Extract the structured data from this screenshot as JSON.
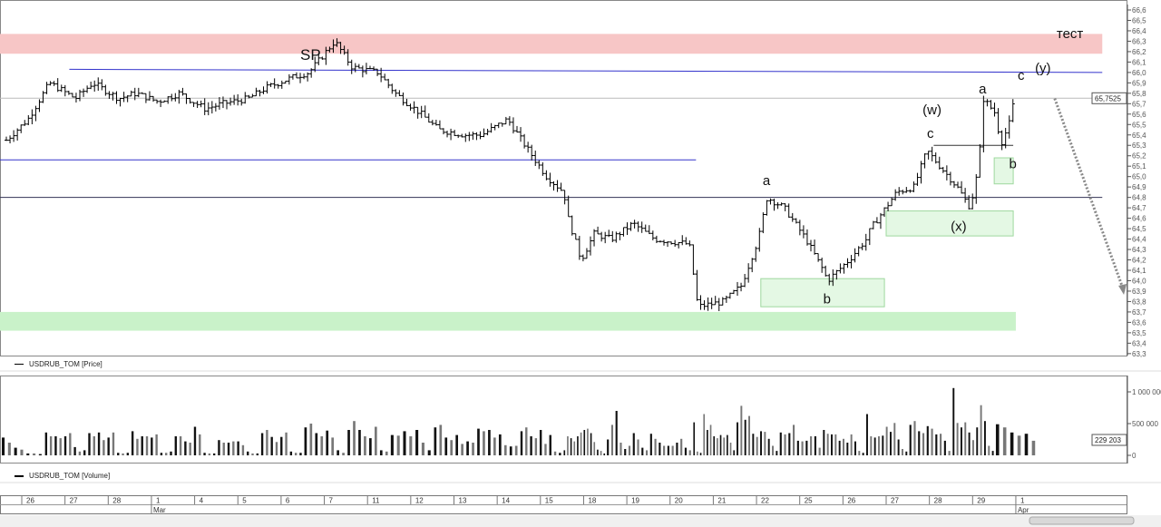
{
  "price_legend": "USDRUB_TOM [Price]",
  "volume_legend": "USDRUB_TOM [Volume]",
  "chart_data": [
    {
      "type": "ohlc",
      "title": "USDRUB_TOM [Price]",
      "ylim": [
        63.3,
        66.6
      ],
      "y_ticks": [
        "66,6",
        "66,5",
        "66,4",
        "66,3",
        "66,2",
        "66,1",
        "66,0",
        "65,9",
        "65,8",
        "65,7",
        "65,6",
        "65,5",
        "65,4",
        "65,3",
        "65,2",
        "65,1",
        "65,0",
        "64,9",
        "64,8",
        "64,7",
        "64,6",
        "64,5",
        "64,4",
        "64,3",
        "64,2",
        "64,1",
        "64,0",
        "63,9",
        "63,8",
        "63,7",
        "63,6",
        "63,5",
        "63,4",
        "63,3"
      ],
      "last_price_label": "65,7525",
      "last_price": 65.7525,
      "price_path": [
        [
          0,
          65.35
        ],
        [
          0.5,
          65.55
        ],
        [
          1,
          65.9
        ],
        [
          1.6,
          65.75
        ],
        [
          2,
          65.9
        ],
        [
          2.6,
          65.75
        ],
        [
          3,
          65.8
        ],
        [
          3.5,
          65.72
        ],
        [
          4,
          65.8
        ],
        [
          4.6,
          65.65
        ],
        [
          5,
          65.7
        ],
        [
          5.6,
          65.75
        ],
        [
          6,
          65.85
        ],
        [
          6.6,
          65.95
        ],
        [
          7,
          66.0
        ],
        [
          7.6,
          66.3
        ],
        [
          8,
          66.05
        ],
        [
          8.6,
          66.0
        ],
        [
          9,
          65.8
        ],
        [
          9.6,
          65.6
        ],
        [
          10,
          65.45
        ],
        [
          10.6,
          65.4
        ],
        [
          11,
          65.4
        ],
        [
          11.6,
          65.55
        ],
        [
          12,
          65.3
        ],
        [
          12.5,
          65.0
        ],
        [
          12.9,
          64.85
        ],
        [
          13,
          64.6
        ],
        [
          13.3,
          64.2
        ],
        [
          13.6,
          64.45
        ],
        [
          14,
          64.4
        ],
        [
          14.5,
          64.55
        ],
        [
          15,
          64.4
        ],
        [
          15.8,
          64.35
        ],
        [
          16,
          63.75
        ],
        [
          16.6,
          63.8
        ],
        [
          17,
          63.95
        ],
        [
          17.4,
          64.4
        ],
        [
          17.6,
          64.8
        ],
        [
          18,
          64.7
        ],
        [
          18.5,
          64.4
        ],
        [
          18.9,
          64.1
        ],
        [
          19,
          64.0
        ],
        [
          19.5,
          64.2
        ],
        [
          19.9,
          64.4
        ],
        [
          20,
          64.5
        ],
        [
          20.6,
          64.85
        ],
        [
          21,
          64.9
        ],
        [
          21.3,
          65.25
        ],
        [
          21.7,
          65.05
        ],
        [
          22,
          64.9
        ],
        [
          22.3,
          64.7
        ],
        [
          22.5,
          65.1
        ],
        [
          22.6,
          65.75
        ],
        [
          22.9,
          65.6
        ],
        [
          23,
          65.3
        ],
        [
          23.2,
          65.5
        ],
        [
          23.35,
          65.8
        ]
      ],
      "zones": [
        {
          "color": "#f7c6c6",
          "from_day": -1,
          "to_day": 25,
          "low": 66.18,
          "high": 66.37
        },
        {
          "color": "#c9f2c9",
          "from_day": -1,
          "to_day": 23,
          "low": 63.52,
          "high": 63.7
        },
        {
          "color": "#e4f8e4",
          "from_day": 17.1,
          "to_day": 19.96,
          "low": 63.75,
          "high": 64.02
        },
        {
          "color": "#e4f8e4",
          "from_day": 20.0,
          "to_day": 22.94,
          "low": 64.43,
          "high": 64.67
        },
        {
          "color": "#e4f8e4",
          "from_day": 22.5,
          "to_day": 22.94,
          "low": 64.93,
          "high": 65.18
        }
      ],
      "lines": [
        {
          "color": "#3333cc",
          "from_day": 1.1,
          "to_day": 25,
          "p1": 66.03,
          "p2": 66.0
        },
        {
          "color": "#3333cc",
          "from_day": -1,
          "to_day": 15.6,
          "p1": 65.16,
          "p2": 65.16
        },
        {
          "color": "#333355",
          "from_day": -1,
          "to_day": 25,
          "p1": 64.8,
          "p2": 64.8
        },
        {
          "color": "#bbbbbb",
          "from_day": -1,
          "to_day": 25,
          "p1": 65.7525,
          "p2": 65.7525
        },
        {
          "color": "#333333",
          "from_day": 21.1,
          "to_day": 22.94,
          "p1": 65.3,
          "p2": 65.3
        }
      ],
      "forecast_arrow": {
        "from": [
          23.9,
          65.75
        ],
        "to": [
          25.5,
          63.9
        ]
      },
      "annotations": [
        {
          "text": "SP",
          "day": 6.8,
          "price": 66.12,
          "size": 17
        },
        {
          "text": "тест",
          "day": 24.3,
          "price": 66.33,
          "size": 15
        },
        {
          "text": "(y)",
          "day": 23.8,
          "price": 66.0,
          "size": 15
        },
        {
          "text": "c",
          "day": 23.4,
          "price": 65.93,
          "size": 15
        },
        {
          "text": "a",
          "day": 22.5,
          "price": 65.8,
          "size": 15
        },
        {
          "text": "(w)",
          "day": 21.2,
          "price": 65.6,
          "size": 15
        },
        {
          "text": "c",
          "day": 21.3,
          "price": 65.37,
          "size": 15
        },
        {
          "text": "b",
          "day": 23.2,
          "price": 65.08,
          "size": 15
        },
        {
          "text": "a",
          "day": 17.5,
          "price": 64.92,
          "size": 15
        },
        {
          "text": "(x)",
          "day": 21.85,
          "price": 64.48,
          "size": 15
        },
        {
          "text": "b",
          "day": 18.9,
          "price": 63.78,
          "size": 15
        }
      ]
    },
    {
      "type": "bar",
      "title": "USDRUB_TOM [Volume]",
      "ylim": [
        -150000,
        1200000
      ],
      "y_ticks": [
        "1 000 000",
        "500 000",
        "0"
      ],
      "last_volume_label": "229 203",
      "daily_volumes_k": [
        [
          280,
          200,
          120,
          90,
          30,
          30,
          20
        ],
        [
          360,
          300,
          300,
          270,
          300,
          350,
          130,
          60,
          80
        ],
        [
          350,
          300,
          360,
          240,
          280,
          360,
          40,
          30,
          40
        ],
        [
          380,
          260,
          300,
          300,
          280,
          330,
          40,
          40,
          60
        ],
        [
          300,
          300,
          220,
          200,
          450,
          330,
          40,
          30,
          30
        ],
        [
          240,
          200,
          200,
          220,
          220,
          160,
          60,
          30,
          30
        ],
        [
          350,
          400,
          290,
          210,
          290,
          360,
          60,
          40,
          40
        ],
        [
          440,
          500,
          350,
          300,
          390,
          280,
          80,
          40
        ],
        [
          400,
          540,
          400,
          300,
          270,
          450,
          80,
          60
        ],
        [
          320,
          310,
          380,
          300,
          400,
          200,
          80
        ],
        [
          440,
          480,
          280,
          240,
          320,
          180,
          220,
          200
        ],
        [
          420,
          380,
          400,
          280,
          330,
          160,
          140,
          150
        ],
        [
          380,
          440,
          300,
          270,
          400,
          180,
          320,
          60,
          40
        ],
        [
          80,
          300,
          270,
          220,
          300,
          360,
          400,
          420,
          350,
          210,
          90,
          70,
          30
        ],
        [
          250,
          480,
          700,
          200,
          100,
          150,
          350,
          250,
          120,
          80
        ],
        [
          340,
          260,
          200,
          150,
          150,
          150,
          200,
          260,
          120,
          80
        ],
        [
          520,
          60,
          40,
          650,
          400,
          480,
          300,
          270,
          320,
          280,
          320,
          200,
          80
        ],
        [
          520,
          780,
          560,
          620,
          340,
          290,
          380,
          370,
          260,
          150,
          70
        ],
        [
          360,
          330,
          350,
          480,
          230,
          220,
          230,
          300,
          300,
          120
        ],
        [
          400,
          340,
          330,
          330,
          230,
          260,
          200,
          330,
          220,
          70,
          40
        ],
        [
          650,
          300,
          280,
          300,
          310,
          450,
          370,
          510,
          250,
          100,
          60
        ],
        [
          480,
          540,
          380,
          350,
          460,
          420,
          330,
          340,
          230,
          70
        ],
        [
          1060,
          510,
          440,
          520,
          360,
          240,
          440,
          790,
          540,
          150,
          70
        ],
        [
          490,
          440,
          360,
          310,
          340,
          230
        ]
      ]
    }
  ],
  "x_axis": {
    "days": [
      "26",
      "27",
      "28",
      "1",
      "4",
      "5",
      "6",
      "7",
      "11",
      "12",
      "13",
      "14",
      "15",
      "18",
      "19",
      "20",
      "21",
      "22",
      "25",
      "26",
      "27",
      "28",
      "29",
      "1"
    ],
    "months": [
      {
        "label": "Mar",
        "day_index": 3
      },
      {
        "label": "Apr",
        "day_index": 23
      }
    ]
  }
}
